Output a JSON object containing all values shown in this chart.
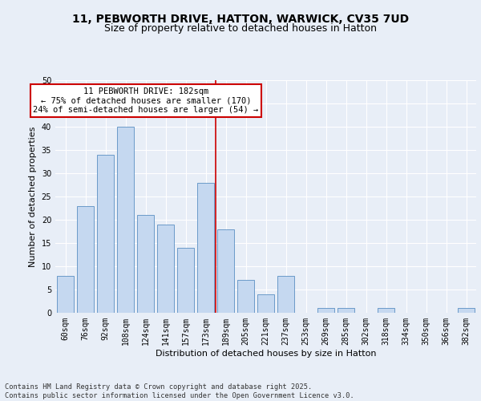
{
  "title_line1": "11, PEBWORTH DRIVE, HATTON, WARWICK, CV35 7UD",
  "title_line2": "Size of property relative to detached houses in Hatton",
  "xlabel": "Distribution of detached houses by size in Hatton",
  "ylabel": "Number of detached properties",
  "categories": [
    "60sqm",
    "76sqm",
    "92sqm",
    "108sqm",
    "124sqm",
    "141sqm",
    "157sqm",
    "173sqm",
    "189sqm",
    "205sqm",
    "221sqm",
    "237sqm",
    "253sqm",
    "269sqm",
    "285sqm",
    "302sqm",
    "318sqm",
    "334sqm",
    "350sqm",
    "366sqm",
    "382sqm"
  ],
  "values": [
    8,
    23,
    34,
    40,
    21,
    19,
    14,
    28,
    18,
    7,
    4,
    8,
    0,
    1,
    1,
    0,
    1,
    0,
    0,
    0,
    1
  ],
  "bar_color": "#c5d8f0",
  "bar_edge_color": "#5a8fc2",
  "vline_color": "#cc0000",
  "annotation_text": "11 PEBWORTH DRIVE: 182sqm\n← 75% of detached houses are smaller (170)\n24% of semi-detached houses are larger (54) →",
  "annotation_box_color": "#cc0000",
  "annotation_bg": "#ffffff",
  "ylim": [
    0,
    50
  ],
  "yticks": [
    0,
    5,
    10,
    15,
    20,
    25,
    30,
    35,
    40,
    45,
    50
  ],
  "background_color": "#e8eef7",
  "grid_color": "#ffffff",
  "footer": "Contains HM Land Registry data © Crown copyright and database right 2025.\nContains public sector information licensed under the Open Government Licence v3.0.",
  "title_fontsize": 10,
  "subtitle_fontsize": 9,
  "axis_label_fontsize": 8,
  "tick_fontsize": 7,
  "annotation_fontsize": 7.5,
  "ylabel_full": "Number of detached properties"
}
